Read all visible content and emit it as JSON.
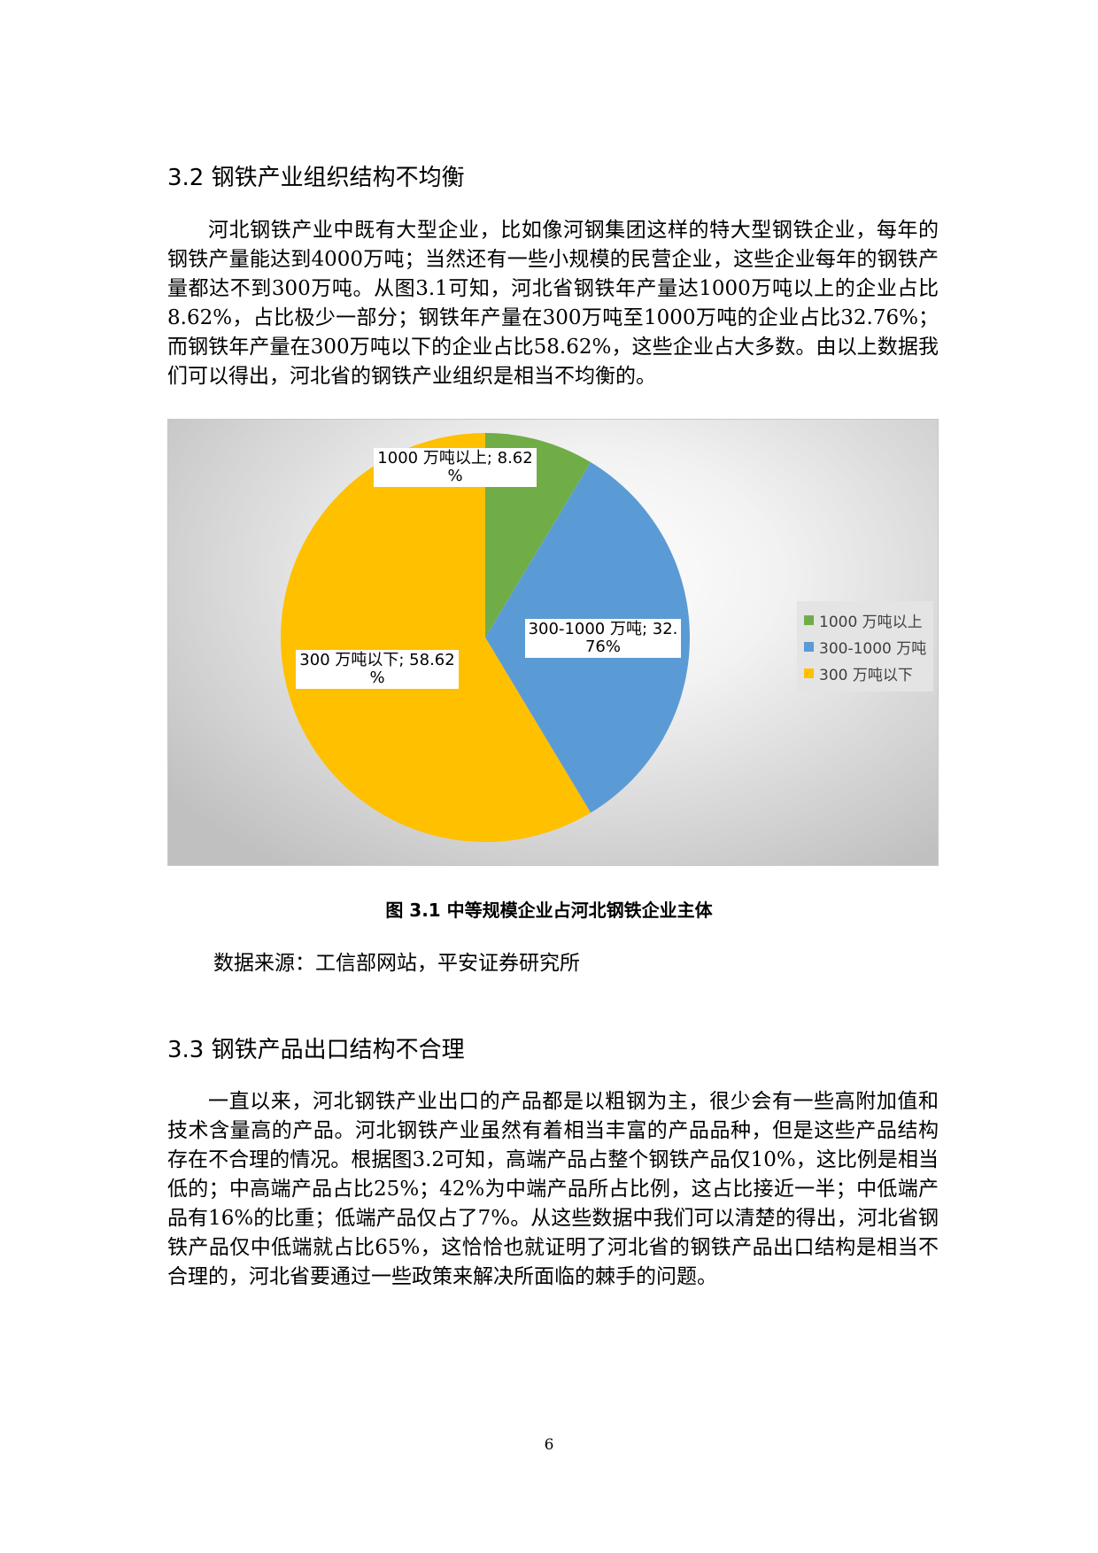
{
  "section1": {
    "heading": "3.2 钢铁产业组织结构不均衡",
    "paragraph": "河北钢铁产业中既有大型企业，比如像河钢集团这样的特大型钢铁企业，每年的钢铁产量能达到4000万吨；当然还有一些小规模的民营企业，这些企业每年的钢铁产量都达不到300万吨。从图3.1可知，河北省钢铁年产量达1000万吨以上的企业占比8.62%，占比极少一部分；钢铁年产量在300万吨至1000万吨的企业占比32.76%；而钢铁年产量在300万吨以下的企业占比58.62%，这些企业占大多数。由以上数据我们可以得出，河北省的钢铁产业组织是相当不均衡的。"
  },
  "chart_data": {
    "type": "pie",
    "title": "",
    "categories": [
      "1000万吨以上",
      "300-1000万吨",
      "300万吨以下"
    ],
    "values": [
      8.62,
      32.76,
      58.62
    ],
    "colors": [
      "#70ad47",
      "#5b9bd5",
      "#ffc000"
    ],
    "data_labels": [
      [
        "1000 万吨以上; 8.62",
        "%"
      ],
      [
        "300-1000 万吨; 32.",
        "76%"
      ],
      [
        "300 万吨以下; 58.62",
        "%"
      ]
    ],
    "legend": {
      "placement": "right",
      "entries": [
        "1000 万吨以上",
        "300-1000 万吨",
        "300 万吨以下"
      ]
    }
  },
  "figure": {
    "caption": "图 3.1 中等规模企业占河北钢铁企业主体",
    "source": "数据来源：工信部网站，平安证券研究所"
  },
  "section2": {
    "heading": "3.3 钢铁产品出口结构不合理",
    "paragraph": "一直以来，河北钢铁产业出口的产品都是以粗钢为主，很少会有一些高附加值和技术含量高的产品。河北钢铁产业虽然有着相当丰富的产品品种，但是这些产品结构存在不合理的情况。根据图3.2可知，高端产品占整个钢铁产品仅10%，这比例是相当低的；中高端产品占比25%；42%为中端产品所占比例，这占比接近一半；中低端产品有16%的比重；低端产品仅占了7%。从这些数据中我们可以清楚的得出，河北省钢铁产品仅中低端就占比65%，这恰恰也就证明了河北省的钢铁产品出口结构是相当不合理的，河北省要通过一些政策来解决所面临的棘手的问题。"
  },
  "page_number": "6"
}
